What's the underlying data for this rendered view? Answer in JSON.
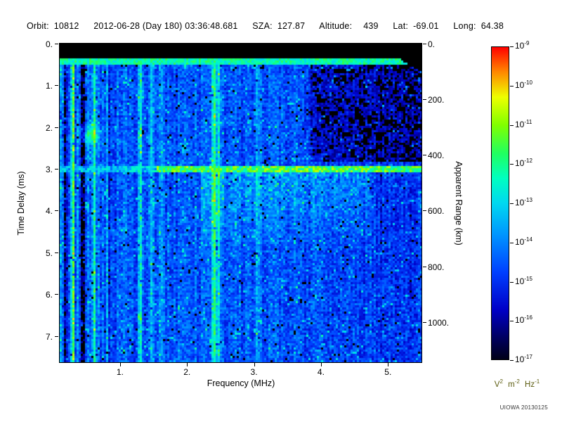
{
  "header": {
    "orbit_label": "Orbit:",
    "orbit_value": "10812",
    "datetime": "2012-06-28 (Day 180) 03:36:48.681",
    "sza_label": "SZA:",
    "sza_value": "127.87",
    "altitude_label": "Altitude:",
    "altitude_value": "439",
    "lat_label": "Lat:",
    "lat_value": "-69.01",
    "long_label": "Long:",
    "long_value": "64.38"
  },
  "footer": {
    "credit": "UIOWA 20130125"
  },
  "chart_data": {
    "type": "heatmap",
    "description": "Radar sounder ionogram: received spectral density vs sounding frequency and echo time delay. Black band at top, transmit pulse line near 0.4 ms, strong ground/ionospheric echo line at ~3.0 ms (brightest above 1.6 MHz), vertical interference lines, dark low-signal region upper right, diffuse echo haze below the 3 ms line.",
    "xlabel": "Frequency (MHz)",
    "ylabel_left": "Time Delay (ms)",
    "ylabel_right": "Apparent Range (km)",
    "x_range_mhz": [
      0.1,
      5.5
    ],
    "y_left_range_ms": [
      0,
      7.63
    ],
    "km_per_ms": 150,
    "x_ticks": [
      {
        "value": 1,
        "label": "1."
      },
      {
        "value": 2,
        "label": "2."
      },
      {
        "value": 3,
        "label": "3."
      },
      {
        "value": 4,
        "label": "4."
      },
      {
        "value": 5,
        "label": "5."
      }
    ],
    "y_left_ticks": [
      {
        "value": 0,
        "label": "0."
      },
      {
        "value": 1,
        "label": "1."
      },
      {
        "value": 2,
        "label": "2."
      },
      {
        "value": 3,
        "label": "3."
      },
      {
        "value": 4,
        "label": "4."
      },
      {
        "value": 5,
        "label": "5."
      },
      {
        "value": 6,
        "label": "6."
      },
      {
        "value": 7,
        "label": "7."
      }
    ],
    "y_right_ticks": [
      {
        "value_km": 0,
        "label": "0."
      },
      {
        "value_km": 200,
        "label": "200."
      },
      {
        "value_km": 400,
        "label": "400."
      },
      {
        "value_km": 600,
        "label": "600."
      },
      {
        "value_km": 800,
        "label": "800."
      },
      {
        "value_km": 1000,
        "label": "1000."
      }
    ],
    "colorbar": {
      "scale": "log",
      "ticks": [
        {
          "base": "10",
          "exp": "-9"
        },
        {
          "base": "10",
          "exp": "-10"
        },
        {
          "base": "10",
          "exp": "-11"
        },
        {
          "base": "10",
          "exp": "-12"
        },
        {
          "base": "10",
          "exp": "-13"
        },
        {
          "base": "10",
          "exp": "-14"
        },
        {
          "base": "10",
          "exp": "-15"
        },
        {
          "base": "10",
          "exp": "-16"
        },
        {
          "base": "10",
          "exp": "-17"
        }
      ],
      "unit": [
        {
          "t": "V",
          "s": "2"
        },
        {
          "t": "m",
          "s": "-2"
        },
        {
          "t": "Hz",
          "s": "-1"
        }
      ],
      "colormap_stops": [
        {
          "pos": 0.0,
          "color": "#000018"
        },
        {
          "pos": 0.07,
          "color": "#000060"
        },
        {
          "pos": 0.16,
          "color": "#0000C8"
        },
        {
          "pos": 0.28,
          "color": "#0040FF"
        },
        {
          "pos": 0.4,
          "color": "#0096FF"
        },
        {
          "pos": 0.5,
          "color": "#00D8F0"
        },
        {
          "pos": 0.58,
          "color": "#00FFC0"
        },
        {
          "pos": 0.66,
          "color": "#20FF60"
        },
        {
          "pos": 0.75,
          "color": "#80FF00"
        },
        {
          "pos": 0.84,
          "color": "#EEFF00"
        },
        {
          "pos": 0.92,
          "color": "#FF8800"
        },
        {
          "pos": 1.0,
          "color": "#FF0000"
        }
      ]
    },
    "features": {
      "seed": 20130125,
      "black_threshold": 0.1,
      "background": {
        "base": 0.22,
        "noise": 0.17,
        "speckle_prob": 0.1,
        "speckle_boost": 0.24,
        "black_speckle_prob": 0.02
      },
      "left_streak_region_max_mhz": 0.95,
      "left_streak_amplitude": 0.13,
      "right_streak_amplitude": 0.045,
      "edge_bright_max_mhz": 0.17,
      "right_darkening": 0.05,
      "top_black_band_max_ms": 0.36,
      "transmit_pulse": {
        "t_min_ms": 0.37,
        "t_max_ms": 0.49,
        "value": 0.5,
        "noise": 0.18
      },
      "echo_line": {
        "t_ms": 3.02,
        "half_thickness_ms": 0.07,
        "weak_value": 0.46,
        "bright_value": 0.68,
        "bright_f_min_mhz": 1.55,
        "noise": 0.13
      },
      "vertical_lines": [
        {
          "f_mhz": 0.3,
          "strength": 0.26
        },
        {
          "f_mhz": 0.62,
          "strength": 0.18
        },
        {
          "f_mhz": 1.3,
          "strength": 0.24
        },
        {
          "f_mhz": 1.46,
          "strength": 0.16
        },
        {
          "f_mhz": 1.62,
          "strength": 0.12
        },
        {
          "f_mhz": 2.4,
          "strength": 0.3
        },
        {
          "f_mhz": 2.47,
          "strength": 0.24
        },
        {
          "f_mhz": 3.05,
          "strength": 0.1
        }
      ],
      "dark_vertical_bands": [
        {
          "f_mhz": 0.2,
          "strength": 0.22
        },
        {
          "f_mhz": 0.46,
          "strength": 0.18
        }
      ],
      "upper_right_dark": {
        "f_min_mhz": 3.85,
        "t_max_ms": 2.85,
        "delta": 0.12,
        "black_prob": 0.16
      },
      "echo_haze": {
        "f_min_mhz": 2.2,
        "f_max_mhz": 4.7,
        "t_min_ms": 3.1,
        "t_max_ms": 5.0,
        "strength": 0.12
      },
      "blob": {
        "f_mhz": 0.55,
        "t_ms": 2.2,
        "sigma_f": 0.15,
        "sigma_t": 0.22,
        "strength": 0.26
      }
    }
  }
}
